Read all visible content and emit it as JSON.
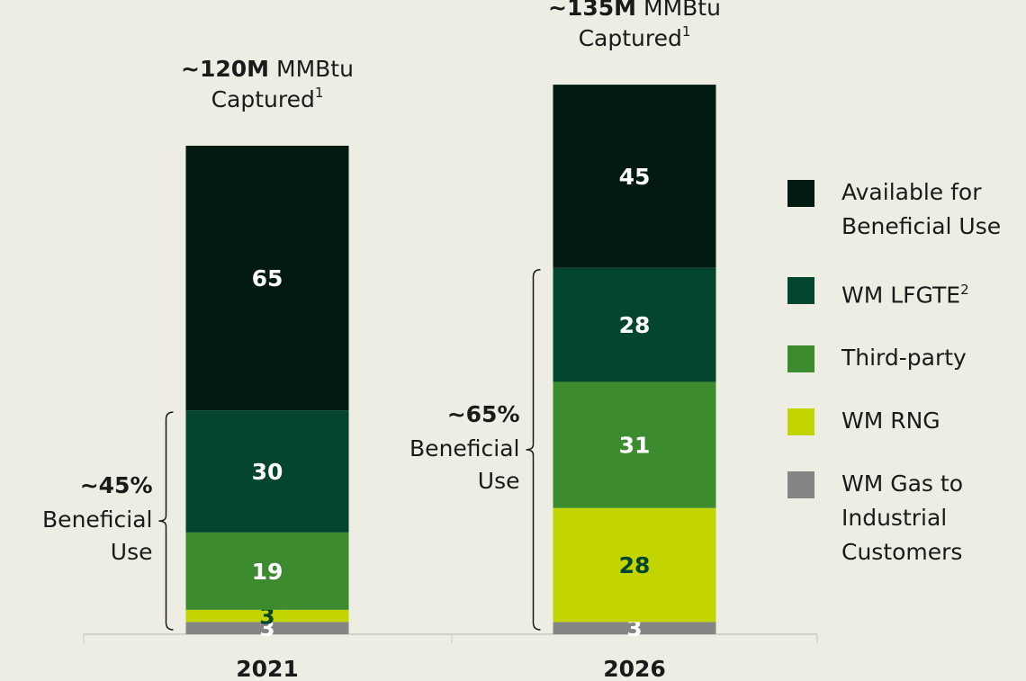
{
  "chart_data": {
    "type": "stacked_bar",
    "categories": [
      "2021",
      "2026"
    ],
    "series": [
      {
        "name": "Available for Beneficial Use",
        "color": "#021a12",
        "label_color": "#ffffff",
        "values": [
          65,
          45
        ]
      },
      {
        "name": "WM LFGTE",
        "sup": "2",
        "color": "#04452f",
        "label_color": "#ffffff",
        "values": [
          30,
          28
        ]
      },
      {
        "name": "Third-party",
        "color": "#3d8b2f",
        "label_color": "#ffffff",
        "values": [
          19,
          31
        ]
      },
      {
        "name": "WM RNG",
        "color": "#c2d500",
        "label_color": "#04452f",
        "values": [
          3,
          28
        ]
      },
      {
        "name": "WM Gas to Industrial Customers",
        "color": "#858585",
        "label_color": "#ffffff",
        "values": [
          3,
          3
        ]
      }
    ],
    "totals": [
      {
        "bold": "~120M",
        "text": "MMBtu",
        "line2": "Captured",
        "sup": "1"
      },
      {
        "bold": "~135M",
        "text": "MMBtu",
        "line2": "Captured",
        "sup": "1"
      }
    ],
    "beneficial": [
      {
        "percent": "~45%",
        "lines": [
          "Beneficial",
          "Use"
        ]
      },
      {
        "percent": "~65%",
        "lines": [
          "Beneficial",
          "Use"
        ]
      }
    ]
  }
}
